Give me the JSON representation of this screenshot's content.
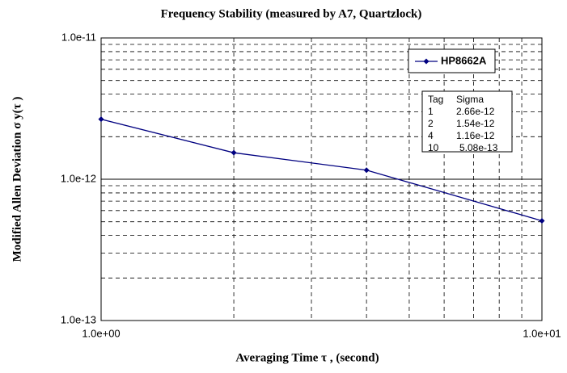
{
  "chart_data": {
    "type": "line",
    "title": "Frequency Stability (measured by A7, Quartzlock)",
    "x_label": "Averaging Time τ , (second)",
    "y_label": "Modified Allen Deviation σ y(τ )",
    "x": [
      1,
      2,
      4,
      10
    ],
    "series": [
      {
        "name": "HP8662A",
        "color": "#000080",
        "values": [
          2.66e-12,
          1.54e-12,
          1.16e-12,
          5.08e-13
        ]
      }
    ],
    "xlim": [
      1,
      10
    ],
    "ylim": [
      1e-13,
      1e-11
    ],
    "xticks": [
      {
        "value": 1,
        "label": "1.0e+00"
      },
      {
        "value": 10,
        "label": "1.0e+01"
      }
    ],
    "yticks": [
      {
        "value": 1e-13,
        "label": "1.0e-13"
      },
      {
        "value": 1e-12,
        "label": "1.0e-12"
      },
      {
        "value": 1e-11,
        "label": "1.0e-11"
      }
    ],
    "xscale": "log",
    "yscale": "log",
    "grid": true,
    "minor_grid": true,
    "legend": "upper right",
    "annotation_table": {
      "header": [
        "Tag",
        "Sigma"
      ],
      "rows": [
        [
          "1",
          "2.66e-12"
        ],
        [
          "2",
          "1.54e-12"
        ],
        [
          "4",
          "1.16e-12"
        ],
        [
          "10",
          "5.08e-13"
        ]
      ]
    }
  }
}
